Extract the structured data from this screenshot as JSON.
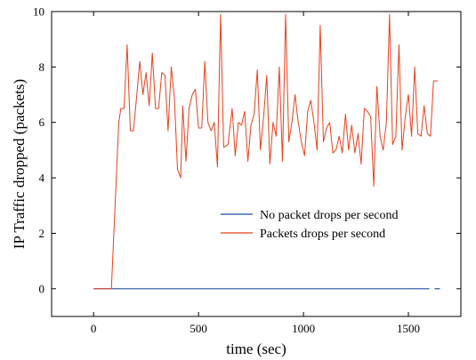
{
  "chart_data": {
    "type": "line",
    "title": "",
    "xlabel": "time (sec)",
    "ylabel": "IP Traffic dropped (packets)",
    "xlim": [
      -200,
      1750
    ],
    "ylim": [
      -1,
      10
    ],
    "xticks": [
      0,
      500,
      1000,
      1500
    ],
    "xtick_labels": [
      "0",
      "500",
      "1000",
      "1500"
    ],
    "yticks": [
      0,
      2,
      4,
      6,
      8,
      10
    ],
    "ytick_labels": [
      "0",
      "2",
      "4",
      "6",
      "8",
      "10"
    ],
    "grid": false,
    "legend_position": "center-right",
    "series": [
      {
        "name": "No packet drops per second",
        "color": "#1f4e9c",
        "segments": [
          {
            "x": [
              0,
              1600
            ],
            "y": [
              0,
              0
            ]
          },
          {
            "x": [
              1625,
              1650
            ],
            "y": [
              0,
              0
            ]
          }
        ]
      },
      {
        "name": "Packets drops per second",
        "color": "#e8401c",
        "x": [
          0,
          85,
          120,
          130,
          145,
          160,
          175,
          190,
          205,
          220,
          235,
          250,
          265,
          280,
          295,
          310,
          325,
          340,
          355,
          370,
          385,
          400,
          415,
          425,
          440,
          455,
          470,
          485,
          500,
          515,
          530,
          545,
          560,
          575,
          590,
          605,
          620,
          640,
          660,
          675,
          690,
          705,
          720,
          735,
          750,
          765,
          780,
          795,
          810,
          825,
          840,
          855,
          870,
          885,
          900,
          915,
          930,
          945,
          960,
          975,
          990,
          1005,
          1020,
          1035,
          1050,
          1065,
          1080,
          1095,
          1110,
          1125,
          1140,
          1155,
          1170,
          1185,
          1200,
          1215,
          1230,
          1245,
          1260,
          1275,
          1290,
          1305,
          1320,
          1335,
          1350,
          1365,
          1380,
          1395,
          1410,
          1425,
          1440,
          1455,
          1470,
          1485,
          1500,
          1515,
          1530,
          1545,
          1560,
          1575,
          1590,
          1605,
          1620,
          1640
        ],
        "y": [
          0,
          0,
          6.0,
          6.5,
          6.5,
          8.8,
          5.7,
          5.7,
          6.9,
          8.2,
          7.0,
          7.8,
          6.6,
          8.5,
          6.5,
          6.5,
          7.8,
          7.7,
          5.7,
          8.0,
          6.9,
          4.3,
          4.0,
          6.6,
          4.6,
          6.5,
          7.0,
          7.2,
          5.8,
          5.8,
          8.2,
          6.0,
          5.7,
          6.0,
          4.4,
          9.9,
          5.1,
          5.2,
          6.5,
          4.8,
          6.0,
          5.9,
          6.4,
          4.6,
          5.9,
          6.3,
          7.9,
          5.0,
          6.2,
          7.7,
          4.5,
          6.0,
          5.5,
          8.0,
          4.6,
          9.9,
          5.3,
          6.0,
          7.0,
          6.0,
          5.3,
          4.8,
          6.4,
          6.8,
          6.0,
          5.0,
          9.5,
          5.3,
          5.8,
          6.0,
          4.9,
          5.0,
          5.5,
          4.9,
          6.3,
          5.0,
          5.9,
          4.9,
          5.6,
          4.5,
          6.5,
          6.4,
          6.2,
          3.7,
          7.3,
          5.5,
          5.0,
          6.0,
          9.9,
          5.2,
          5.5,
          8.8,
          5.0,
          6.2,
          7.0,
          5.5,
          8.0,
          5.6,
          5.5,
          6.6,
          5.6,
          5.5,
          7.5,
          7.5
        ]
      }
    ]
  }
}
